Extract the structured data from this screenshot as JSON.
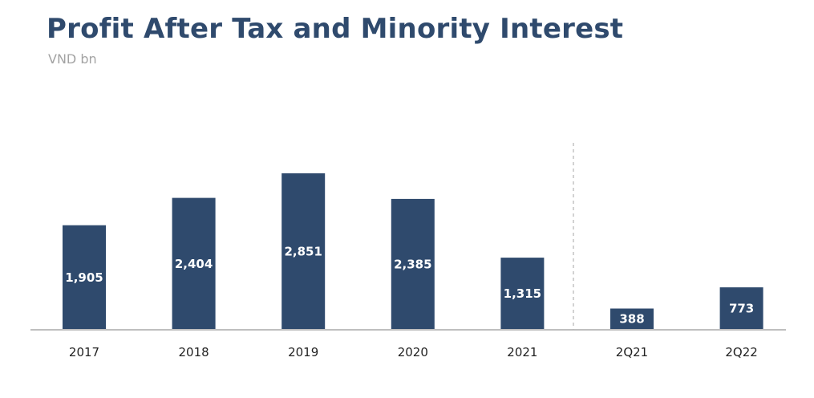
{
  "chart_data": {
    "type": "bar",
    "title": "Profit After Tax and Minority Interest",
    "subtitle": "VND bn",
    "xlabel": "",
    "ylabel": "",
    "categories": [
      "2017",
      "2018",
      "2019",
      "2020",
      "2021",
      "2Q21",
      "2Q22"
    ],
    "values": [
      1905,
      2404,
      2851,
      2385,
      1315,
      388,
      773
    ],
    "value_labels": [
      "1,905",
      "2,404",
      "2,851",
      "2,385",
      "1,315",
      "388",
      "773"
    ],
    "ylim": [
      0,
      2851
    ],
    "grid": false,
    "separator_after_category": "2021",
    "bar_color": "#2f4a6d",
    "label_color": "#ffffff"
  }
}
